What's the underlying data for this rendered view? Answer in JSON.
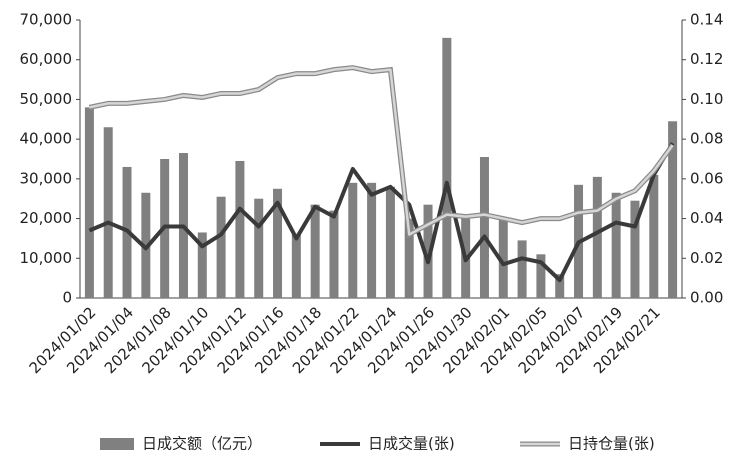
{
  "chart_data": {
    "type": "bar-line",
    "categories": [
      "2024/01/02",
      null,
      "2024/01/04",
      null,
      "2024/01/08",
      null,
      "2024/01/10",
      null,
      "2024/01/12",
      null,
      "2024/01/16",
      null,
      "2024/01/18",
      null,
      "2024/01/22",
      null,
      "2024/01/24",
      null,
      "2024/01/26",
      null,
      "2024/01/30",
      null,
      "2024/02/01",
      null,
      "2024/02/05",
      null,
      "2024/02/07",
      null,
      "2024/02/19",
      null,
      "2024/02/21",
      null
    ],
    "series": [
      {
        "name": "日成交额（亿元）",
        "kind": "bar",
        "color": "#808080",
        "values": [
          48000,
          43000,
          33000,
          26500,
          35000,
          36500,
          16500,
          25500,
          34500,
          25000,
          27500,
          16000,
          23500,
          22000,
          29000,
          29000,
          28000,
          20000,
          23500,
          65500,
          20000,
          35500,
          20000,
          14500,
          11000,
          6000,
          28500,
          30500,
          26500,
          24500,
          31000,
          44500
        ]
      },
      {
        "name": "日成交量(张)",
        "kind": "line",
        "axis": "y2",
        "color": "#3a3a3a",
        "values": [
          0.034,
          0.038,
          0.034,
          0.025,
          0.036,
          0.036,
          0.026,
          0.032,
          0.045,
          0.036,
          0.048,
          0.03,
          0.046,
          0.041,
          0.065,
          0.052,
          0.056,
          0.047,
          0.018,
          0.058,
          0.019,
          0.031,
          0.017,
          0.02,
          0.018,
          0.009,
          0.028,
          0.033,
          0.038,
          0.036,
          0.062,
          0.078
        ]
      },
      {
        "name": "日持仓量(张)",
        "kind": "line",
        "axis": "y2",
        "color": "#d6d6d6",
        "values": [
          0.096,
          0.098,
          0.098,
          0.099,
          0.1,
          0.102,
          0.101,
          0.103,
          0.103,
          0.105,
          0.111,
          0.113,
          0.113,
          0.115,
          0.116,
          0.114,
          0.115,
          0.032,
          0.037,
          0.042,
          0.041,
          0.042,
          0.04,
          0.038,
          0.04,
          0.04,
          0.043,
          0.044,
          0.05,
          0.054,
          0.064,
          0.077
        ]
      }
    ],
    "ylim": [
      0,
      70000
    ],
    "yticks": [
      0,
      {
        "value": 10000,
        "label": "10,000"
      },
      {
        "value": 20000,
        "label": "20,000"
      },
      {
        "value": 30000,
        "label": "30,000"
      },
      {
        "value": 40000,
        "label": "40,000"
      },
      {
        "value": 50000,
        "label": "50,000"
      },
      {
        "value": 60000,
        "label": "60,000"
      },
      {
        "value": 70000,
        "label": "70,000"
      }
    ],
    "y2lim": [
      0,
      0.14
    ],
    "y2ticks": [
      {
        "value": 0,
        "label": "0.00"
      },
      0.02,
      0.04,
      0.06,
      0.08,
      {
        "value": 0.1,
        "label": "0.10"
      },
      0.12,
      0.14
    ]
  }
}
